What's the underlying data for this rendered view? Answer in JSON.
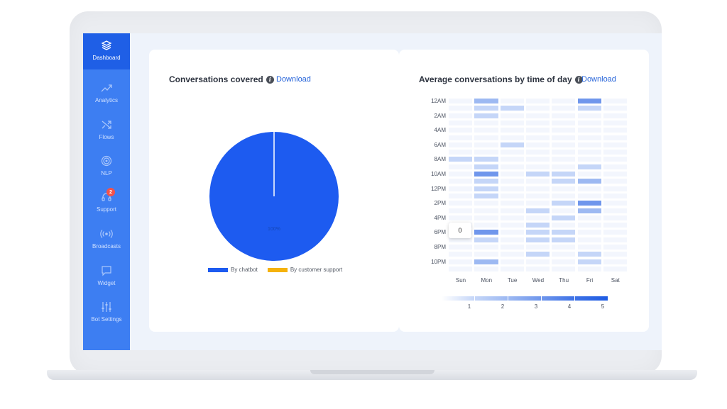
{
  "sidebar": {
    "items": [
      {
        "label": "Dashboard",
        "icon": "layers-icon",
        "active": true
      },
      {
        "label": "Analytics",
        "icon": "trend-up-icon"
      },
      {
        "label": "Flows",
        "icon": "shuffle-icon"
      },
      {
        "label": "NLP",
        "icon": "target-icon"
      },
      {
        "label": "Support",
        "icon": "headset-icon",
        "badge": "2"
      },
      {
        "label": "Broadcasts",
        "icon": "broadcast-icon"
      },
      {
        "label": "Widget",
        "icon": "chat-bubble-icon"
      },
      {
        "label": "Bot Settings",
        "icon": "sliders-icon"
      }
    ]
  },
  "conversations_card": {
    "title": "Conversations covered",
    "download_label": "Download",
    "pie_label": "100%",
    "legend": [
      {
        "label": "By chatbot",
        "color": "#1d5bf0"
      },
      {
        "label": "By customer support",
        "color": "#f5b20b"
      }
    ]
  },
  "heatmap_card": {
    "title": "Average conversations by time of day",
    "download_label": "Download",
    "tooltip_value": "0",
    "scale_labels": [
      "1",
      "2",
      "3",
      "4",
      "5"
    ]
  },
  "chart_data": [
    {
      "type": "pie",
      "title": "Conversations covered",
      "labels": [
        "By chatbot",
        "By customer support"
      ],
      "values": [
        100,
        0
      ],
      "colors": [
        "#1d5bf0",
        "#f5b20b"
      ]
    },
    {
      "type": "heatmap",
      "title": "Average conversations by time of day",
      "x_categories": [
        "Sun",
        "Mon",
        "Tue",
        "Wed",
        "Thu",
        "Fri",
        "Sat"
      ],
      "y_tick_labels": [
        "12AM",
        "2AM",
        "4AM",
        "6AM",
        "8AM",
        "10AM",
        "12PM",
        "2PM",
        "4PM",
        "6PM",
        "8PM",
        "10PM"
      ],
      "y_categories": [
        "12AM",
        "1AM",
        "2AM",
        "3AM",
        "4AM",
        "5AM",
        "6AM",
        "7AM",
        "8AM",
        "9AM",
        "10AM",
        "11AM",
        "12PM",
        "1PM",
        "2PM",
        "3PM",
        "4PM",
        "5PM",
        "6PM",
        "7PM",
        "8PM",
        "9PM",
        "10PM",
        "11PM"
      ],
      "color_scale": [
        "#e8effd",
        "#c5d6f8",
        "#9db9f2",
        "#6f96ec",
        "#3e72e6",
        "#1d5be3"
      ],
      "scale_range": [
        1,
        5
      ],
      "values": [
        [
          0,
          2,
          0,
          0,
          0,
          3,
          0
        ],
        [
          0,
          1,
          1,
          0,
          0,
          1,
          0
        ],
        [
          0,
          1,
          0,
          0,
          0,
          0,
          0
        ],
        [
          0,
          0,
          0,
          0,
          0,
          0,
          0
        ],
        [
          0,
          0,
          0,
          0,
          0,
          0,
          0
        ],
        [
          0,
          0,
          0,
          0,
          0,
          0,
          0
        ],
        [
          0,
          0,
          1,
          0,
          0,
          0,
          0
        ],
        [
          0,
          0,
          0,
          0,
          0,
          0,
          0
        ],
        [
          1,
          1,
          0,
          0,
          0,
          0,
          0
        ],
        [
          0,
          1,
          0,
          0,
          0,
          1,
          0
        ],
        [
          0,
          3,
          0,
          1,
          1,
          0,
          0
        ],
        [
          0,
          1,
          0,
          0,
          1,
          2,
          0
        ],
        [
          0,
          1,
          0,
          0,
          0,
          0,
          0
        ],
        [
          0,
          1,
          0,
          0,
          0,
          0,
          0
        ],
        [
          0,
          0,
          0,
          0,
          1,
          3,
          0
        ],
        [
          0,
          0,
          0,
          1,
          0,
          2,
          0
        ],
        [
          0,
          0,
          0,
          0,
          1,
          0,
          0
        ],
        [
          0,
          0,
          0,
          1,
          0,
          0,
          0
        ],
        [
          0,
          3,
          0,
          1,
          1,
          0,
          0
        ],
        [
          0,
          1,
          0,
          1,
          1,
          0,
          0
        ],
        [
          0,
          0,
          0,
          0,
          0,
          0,
          0
        ],
        [
          0,
          0,
          0,
          1,
          0,
          1,
          0
        ],
        [
          0,
          2,
          0,
          0,
          0,
          1,
          0
        ],
        [
          0,
          0,
          0,
          0,
          0,
          0,
          0
        ]
      ]
    }
  ]
}
